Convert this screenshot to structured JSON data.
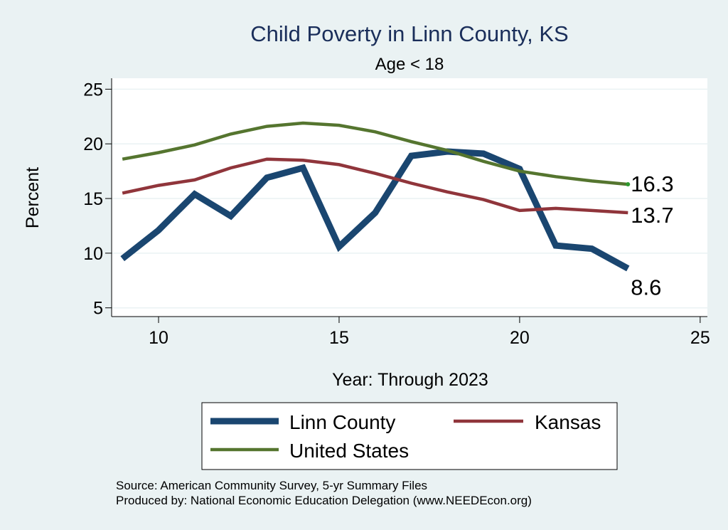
{
  "chart_data": {
    "type": "line",
    "title": "Child Poverty in Linn County, KS",
    "subtitle": "Age < 18",
    "xlabel": "Year: Through 2023",
    "ylabel": "Percent",
    "xlim": [
      8.7,
      25.2
    ],
    "ylim": [
      4.2,
      26
    ],
    "xticks": [
      10,
      15,
      20,
      25
    ],
    "yticks": [
      5,
      10,
      15,
      20,
      25
    ],
    "grid": true,
    "series": [
      {
        "name": "Linn County",
        "color": "#1a4670",
        "x": [
          9,
          10,
          11,
          12,
          13,
          14,
          15,
          16,
          17,
          18,
          19,
          20,
          21,
          22,
          23
        ],
        "values": [
          9.5,
          12.1,
          15.4,
          13.4,
          16.9,
          17.8,
          10.6,
          13.7,
          18.9,
          19.3,
          19.1,
          17.7,
          10.7,
          10.4,
          8.6
        ],
        "end_label": "8.6"
      },
      {
        "name": "Kansas",
        "color": "#90353b",
        "x": [
          9,
          10,
          11,
          12,
          13,
          14,
          15,
          16,
          17,
          18,
          19,
          20,
          21,
          22,
          23
        ],
        "values": [
          15.5,
          16.2,
          16.7,
          17.8,
          18.6,
          18.5,
          18.1,
          17.3,
          16.4,
          15.6,
          14.9,
          13.9,
          14.1,
          13.9,
          13.7
        ],
        "end_label": "13.7"
      },
      {
        "name": "United States",
        "color": "#55752f",
        "x": [
          9,
          10,
          11,
          12,
          13,
          14,
          15,
          16,
          17,
          18,
          19,
          20,
          21,
          22,
          23
        ],
        "values": [
          18.6,
          19.2,
          19.9,
          20.9,
          21.6,
          21.9,
          21.7,
          21.1,
          20.2,
          19.4,
          18.4,
          17.5,
          17.0,
          16.6,
          16.3
        ],
        "end_label": "16.3"
      }
    ],
    "legend": {
      "position": "bottom",
      "order": [
        "Linn County",
        "Kansas",
        "United States"
      ]
    },
    "notes": [
      "Source: American Community Survey, 5-yr Summary Files",
      "Produced by: National Economic Education Delegation (www.NEEDEcon.org)"
    ]
  }
}
